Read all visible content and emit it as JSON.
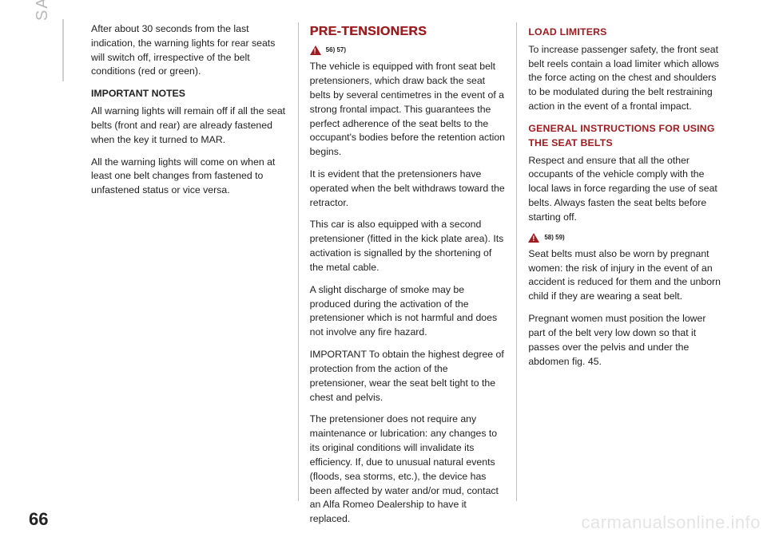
{
  "sideLabel": "SAFETY",
  "pageNumber": "66",
  "watermark": "carmanualsonline.info",
  "col1": {
    "p1": "After about 30 seconds from the last indication, the warning lights for rear seats will switch off, irrespective of the belt conditions (red or green).",
    "h1": "IMPORTANT NOTES",
    "p2": "All warning lights will remain off if all the seat belts (front and rear) are already fastened when the key it turned to MAR.",
    "p3": "All the warning lights will come on when at least one belt changes from fastened to unfastened status or vice versa."
  },
  "col2": {
    "h1": "PRE-TENSIONERS",
    "warn1": "56) 57)",
    "p1": "The vehicle is equipped with front seat belt pretensioners, which draw back the seat belts by several centimetres in the event of a strong frontal impact. This guarantees the perfect adherence of the seat belts to the occupant's bodies before the retention action begins.",
    "p2": "It is evident that the pretensioners have operated when the belt withdraws toward the retractor.",
    "p3": "This car is also equipped with a second pretensioner (fitted in the kick plate area). Its activation is signalled by the shortening of the metal cable.",
    "p4": "A slight discharge of smoke may be produced during the activation of the pretensioner which is not harmful and does not involve any fire hazard.",
    "p5": "IMPORTANT To obtain the highest degree of protection from the action of the pretensioner, wear the seat belt tight to the chest and pelvis.",
    "p6": "The pretensioner does not require any maintenance or lubrication: any changes to its original conditions will invalidate its efficiency. If, due to unusual natural events (floods, sea storms, etc.), the device has been affected by water and/or mud, contact an Alfa Romeo Dealership to have it replaced."
  },
  "col3": {
    "h1": "LOAD LIMITERS",
    "p1": "To increase passenger safety, the front seat belt reels contain a load limiter which allows the force acting on the chest and shoulders to be modulated during the belt restraining action in the event of a frontal impact.",
    "h2": "GENERAL INSTRUCTIONS FOR USING THE SEAT BELTS",
    "p2": "Respect and ensure that all the other occupants of the vehicle comply with the local laws in force regarding the use of seat belts. Always fasten the seat belts before starting off.",
    "warn1": "58) 59)",
    "p3": "Seat belts must also be worn by pregnant women: the risk of injury in the event of an accident is reduced for them and the unborn child if they are wearing a seat belt.",
    "p4": "Pregnant women must position the lower part of the belt very low down so that it passes over the pelvis and under the abdomen fig. 45."
  }
}
